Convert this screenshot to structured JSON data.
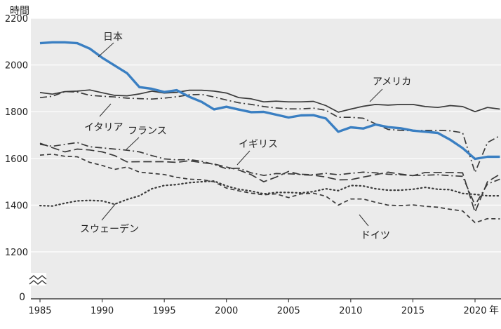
{
  "chart_data": {
    "type": "line",
    "ylabel": "時間",
    "xlabel": "年",
    "xlim": [
      1985,
      2023
    ],
    "ylim": [
      1100,
      2200
    ],
    "y_axis_break": true,
    "y_ticks": [
      1200,
      1400,
      1600,
      1800,
      2000,
      2200
    ],
    "y_zero_label": "0",
    "x_ticks": [
      1985,
      1990,
      1995,
      2000,
      2005,
      2010,
      2015,
      2020
    ],
    "grid": "horizontal",
    "background": "#ebebeb",
    "series": [
      {
        "name": "日本",
        "color": "#3a7fc2",
        "style": "solid-thick",
        "x": [
          1985,
          1986,
          1987,
          1988,
          1989,
          1990,
          1991,
          1992,
          1993,
          1994,
          1995,
          1996,
          1997,
          1998,
          1999,
          2000,
          2001,
          2002,
          2003,
          2004,
          2005,
          2006,
          2007,
          2008,
          2009,
          2010,
          2011,
          2012,
          2013,
          2014,
          2015,
          2016,
          2017,
          2018,
          2019,
          2020,
          2021,
          2022
        ],
        "values": [
          2093,
          2097,
          2097,
          2093,
          2070,
          2031,
          1998,
          1965,
          1905,
          1898,
          1884,
          1892,
          1864,
          1842,
          1810,
          1821,
          1809,
          1798,
          1799,
          1787,
          1775,
          1784,
          1785,
          1771,
          1714,
          1733,
          1728,
          1745,
          1734,
          1729,
          1719,
          1714,
          1709,
          1680,
          1644,
          1598,
          1607,
          1607
        ]
      },
      {
        "name": "アメリカ",
        "color": "#3a3a3a",
        "style": "solid",
        "x": [
          1985,
          1986,
          1987,
          1988,
          1989,
          1990,
          1991,
          1992,
          1993,
          1994,
          1995,
          1996,
          1997,
          1998,
          1999,
          2000,
          2001,
          2002,
          2003,
          2004,
          2005,
          2006,
          2007,
          2008,
          2009,
          2010,
          2011,
          2012,
          2013,
          2014,
          2015,
          2016,
          2017,
          2018,
          2019,
          2020,
          2021,
          2022
        ],
        "values": [
          1882,
          1875,
          1886,
          1888,
          1893,
          1881,
          1870,
          1868,
          1876,
          1888,
          1880,
          1883,
          1892,
          1892,
          1888,
          1880,
          1860,
          1855,
          1842,
          1845,
          1842,
          1842,
          1844,
          1826,
          1798,
          1811,
          1823,
          1831,
          1828,
          1831,
          1831,
          1822,
          1818,
          1826,
          1822,
          1800,
          1818,
          1811
        ]
      },
      {
        "name": "イタリア",
        "color": "#3a3a3a",
        "style": "dashdot",
        "x": [
          1985,
          1986,
          1987,
          1988,
          1989,
          1990,
          1991,
          1992,
          1993,
          1994,
          1995,
          1996,
          1997,
          1998,
          1999,
          2000,
          2001,
          2002,
          2003,
          2004,
          2005,
          2006,
          2007,
          2008,
          2009,
          2010,
          2011,
          2012,
          2013,
          2014,
          2015,
          2016,
          2017,
          2018,
          2019,
          2020,
          2021,
          2022
        ],
        "values": [
          1860,
          1866,
          1886,
          1884,
          1870,
          1866,
          1863,
          1858,
          1856,
          1854,
          1858,
          1864,
          1872,
          1874,
          1863,
          1850,
          1838,
          1831,
          1822,
          1816,
          1812,
          1812,
          1815,
          1806,
          1776,
          1776,
          1772,
          1748,
          1724,
          1720,
          1718,
          1720,
          1720,
          1718,
          1710,
          1540,
          1668,
          1697
        ]
      },
      {
        "name": "フランス",
        "color": "#3a3a3a",
        "style": "dashdot",
        "x": [
          1985,
          1986,
          1987,
          1988,
          1989,
          1990,
          1991,
          1992,
          1993,
          1994,
          1995,
          1996,
          1997,
          1998,
          1999,
          2000,
          2001,
          2002,
          2003,
          2004,
          2005,
          2006,
          2007,
          2008,
          2009,
          2010,
          2011,
          2012,
          2013,
          2014,
          2015,
          2016,
          2017,
          2018,
          2019,
          2020,
          2021,
          2022
        ],
        "values": [
          1660,
          1652,
          1660,
          1668,
          1650,
          1645,
          1640,
          1635,
          1628,
          1612,
          1598,
          1594,
          1595,
          1588,
          1574,
          1556,
          1558,
          1538,
          1527,
          1535,
          1534,
          1532,
          1530,
          1536,
          1530,
          1536,
          1541,
          1538,
          1532,
          1530,
          1527,
          1528,
          1530,
          1526,
          1523,
          1400,
          1490,
          1511
        ]
      },
      {
        "name": "イギリス",
        "color": "#3a3a3a",
        "style": "longdash",
        "x": [
          1985,
          1986,
          1987,
          1988,
          1989,
          1990,
          1991,
          1992,
          1993,
          1994,
          1995,
          1996,
          1997,
          1998,
          1999,
          2000,
          2001,
          2002,
          2003,
          2004,
          2005,
          2006,
          2007,
          2008,
          2009,
          2010,
          2011,
          2012,
          2013,
          2014,
          2015,
          2016,
          2017,
          2018,
          2019,
          2020,
          2021,
          2022
        ],
        "values": [
          1665,
          1646,
          1628,
          1640,
          1636,
          1628,
          1612,
          1585,
          1586,
          1586,
          1586,
          1583,
          1590,
          1582,
          1576,
          1563,
          1550,
          1530,
          1500,
          1520,
          1544,
          1530,
          1528,
          1520,
          1508,
          1509,
          1520,
          1530,
          1541,
          1533,
          1526,
          1540,
          1540,
          1540,
          1538,
          1370,
          1500,
          1532
        ]
      },
      {
        "name": "ドイツ",
        "color": "#3a3a3a",
        "style": "dashed",
        "x": [
          1985,
          1986,
          1987,
          1988,
          1989,
          1990,
          1991,
          1992,
          1993,
          1994,
          1995,
          1996,
          1997,
          1998,
          1999,
          2000,
          2001,
          2002,
          2003,
          2004,
          2005,
          2006,
          2007,
          2008,
          2009,
          2010,
          2011,
          2012,
          2013,
          2014,
          2015,
          2016,
          2017,
          2018,
          2019,
          2020,
          2021,
          2022
        ],
        "values": [
          1614,
          1618,
          1609,
          1607,
          1583,
          1570,
          1553,
          1563,
          1541,
          1536,
          1531,
          1519,
          1511,
          1509,
          1500,
          1473,
          1461,
          1451,
          1444,
          1448,
          1432,
          1448,
          1451,
          1438,
          1400,
          1426,
          1426,
          1412,
          1400,
          1398,
          1401,
          1395,
          1391,
          1382,
          1375,
          1325,
          1342,
          1341
        ]
      },
      {
        "name": "スウェーデン",
        "color": "#3a3a3a",
        "style": "dotted",
        "x": [
          1985,
          1986,
          1987,
          1988,
          1989,
          1990,
          1991,
          1992,
          1993,
          1994,
          1995,
          1996,
          1997,
          1998,
          1999,
          2000,
          2001,
          2002,
          2003,
          2004,
          2005,
          2006,
          2007,
          2008,
          2009,
          2010,
          2011,
          2012,
          2013,
          2014,
          2015,
          2016,
          2017,
          2018,
          2019,
          2020,
          2021,
          2022
        ],
        "values": [
          1398,
          1396,
          1408,
          1418,
          1420,
          1418,
          1404,
          1424,
          1440,
          1470,
          1484,
          1488,
          1496,
          1500,
          1503,
          1482,
          1468,
          1460,
          1448,
          1454,
          1454,
          1452,
          1458,
          1470,
          1462,
          1484,
          1482,
          1470,
          1464,
          1464,
          1468,
          1476,
          1468,
          1466,
          1450,
          1446,
          1440,
          1440
        ]
      }
    ],
    "annotations": [
      {
        "series": "日本",
        "text": "日本"
      },
      {
        "series": "アメリカ",
        "text": "アメリカ"
      },
      {
        "series": "イタリア",
        "text": "イタリア"
      },
      {
        "series": "フランス",
        "text": "フランス"
      },
      {
        "series": "イギリス",
        "text": "イギリス"
      },
      {
        "series": "ドイツ",
        "text": "ドイツ"
      },
      {
        "series": "スウェーデン",
        "text": "スウェーデン"
      }
    ]
  }
}
